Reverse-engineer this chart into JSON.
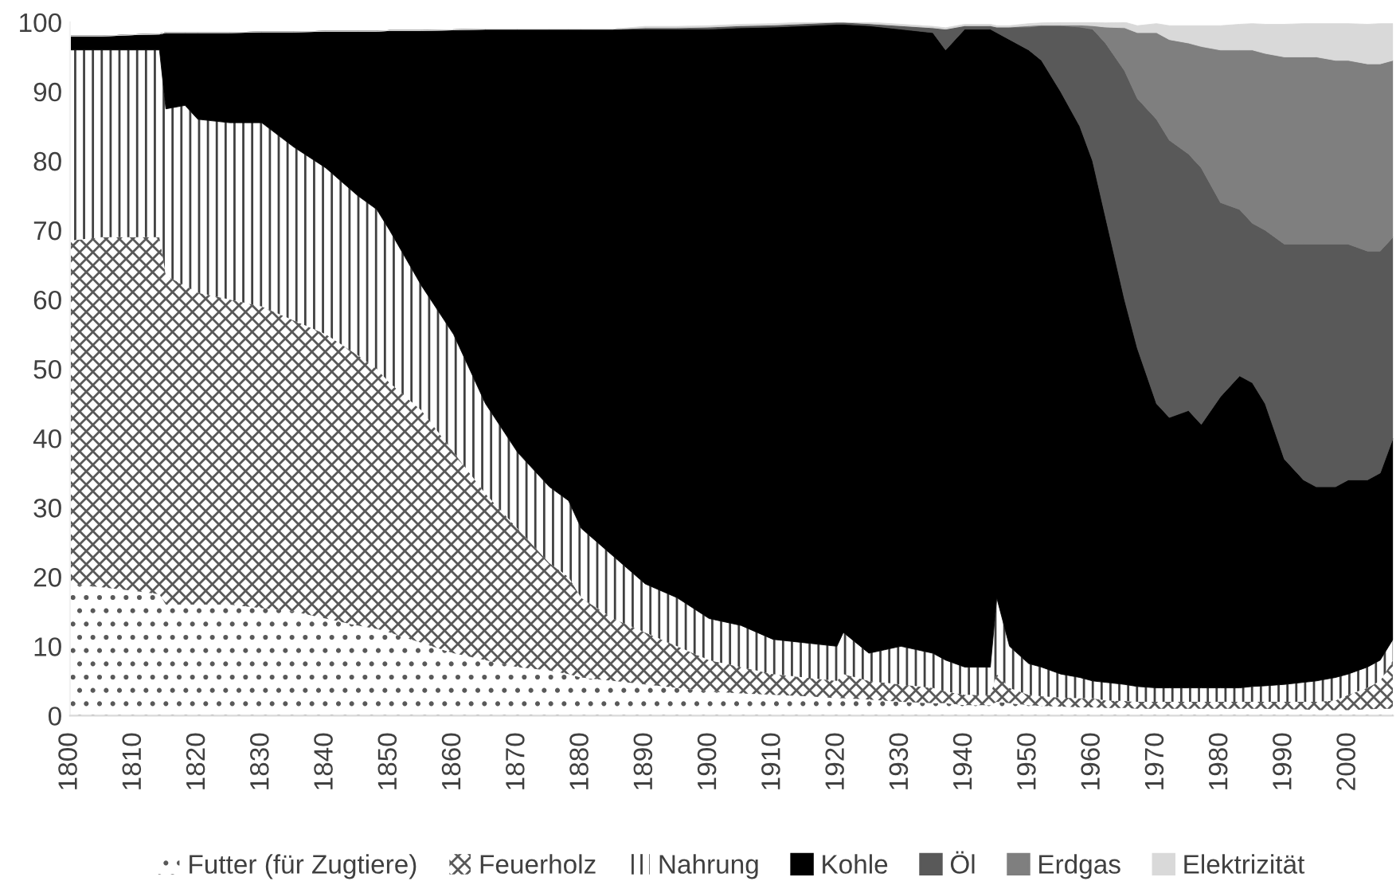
{
  "chart_data": {
    "type": "area",
    "stacked": true,
    "x": [
      1800,
      1805,
      1810,
      1814,
      1815,
      1818,
      1820,
      1825,
      1830,
      1835,
      1840,
      1845,
      1848,
      1850,
      1855,
      1860,
      1865,
      1870,
      1875,
      1878,
      1880,
      1885,
      1890,
      1895,
      1900,
      1905,
      1910,
      1915,
      1920,
      1921,
      1925,
      1930,
      1935,
      1937,
      1940,
      1944,
      1945,
      1947,
      1950,
      1952,
      1955,
      1958,
      1960,
      1962,
      1965,
      1967,
      1970,
      1972,
      1975,
      1977,
      1980,
      1983,
      1985,
      1987,
      1990,
      1993,
      1995,
      1998,
      2000,
      2003,
      2005,
      2007
    ],
    "series": [
      {
        "name": "Futter (für Zugtiere)",
        "color": "#595959",
        "values": [
          19,
          18.5,
          18,
          17.5,
          16,
          16,
          16,
          16,
          15.5,
          15,
          14,
          13,
          12.5,
          12,
          10.5,
          9,
          8,
          7,
          6.5,
          6,
          5.5,
          5,
          4.5,
          4,
          3.5,
          3.2,
          3,
          2.8,
          2.5,
          2.5,
          2.3,
          2,
          1.8,
          1.8,
          1.5,
          1.5,
          2,
          1.8,
          1.5,
          1.4,
          1.3,
          1.2,
          1.2,
          1.1,
          1.1,
          1,
          1,
          1,
          1,
          1,
          1,
          1,
          1,
          1,
          0.9,
          0.9,
          0.8,
          0.8,
          0.8,
          0.9,
          1,
          1
        ]
      },
      {
        "name": "Feuerholz",
        "color": "#595959",
        "values": [
          49.5,
          50.5,
          51,
          51.5,
          47.5,
          46,
          45,
          44,
          43.5,
          42,
          41,
          39,
          37.5,
          36,
          33.5,
          29,
          24,
          20,
          15.5,
          14,
          11.5,
          9,
          7.5,
          6,
          4.5,
          3.8,
          3,
          2.7,
          2.5,
          3.5,
          2.7,
          2.5,
          2.2,
          1.7,
          1.5,
          1.5,
          4,
          2.2,
          1.5,
          1.4,
          1.3,
          1.3,
          1.3,
          1.1,
          1,
          1,
          1,
          1,
          1,
          1,
          1,
          1,
          1,
          1,
          1.1,
          1.1,
          1.2,
          1.4,
          2.2,
          3.1,
          4,
          7
        ]
      },
      {
        "name": "Nahrung",
        "color": "#404040",
        "values": [
          27.5,
          27,
          27,
          27,
          24,
          26,
          25,
          25.5,
          26.5,
          25,
          24,
          23,
          23,
          22,
          18,
          17,
          13,
          11,
          11,
          11,
          10,
          9,
          7,
          7,
          6,
          6,
          5,
          5,
          5,
          6,
          4,
          5.5,
          5,
          4.5,
          4,
          4,
          11,
          6,
          4.5,
          4.2,
          3.4,
          3,
          2.5,
          2.6,
          2.4,
          2.2,
          2,
          2,
          2,
          2,
          2,
          2,
          2.2,
          2.3,
          2.5,
          2.8,
          3,
          3.3,
          3,
          3,
          3,
          3
        ]
      },
      {
        "name": "Kohle",
        "color": "#000000",
        "values": [
          2,
          2,
          2.2,
          2.3,
          11,
          10.5,
          12.5,
          13,
          13.1,
          16.6,
          19.7,
          23.7,
          25.7,
          28.8,
          36.8,
          43.9,
          54,
          61,
          66,
          68,
          72,
          76,
          80,
          82,
          85,
          86.2,
          88.3,
          89,
          89.7,
          87.7,
          90.5,
          89,
          89.5,
          88,
          92,
          92,
          81.5,
          87.5,
          88.5,
          87.5,
          84,
          79.5,
          75,
          67.2,
          55.5,
          48.8,
          41,
          39,
          40,
          38,
          42,
          45,
          43.8,
          40.7,
          32.5,
          29.2,
          28,
          27.5,
          28,
          27,
          27,
          29
        ]
      },
      {
        "name": "Öl",
        "color": "#595959",
        "values": [
          0,
          0,
          0,
          0,
          0,
          0,
          0,
          0,
          0,
          0,
          0,
          0,
          0,
          0,
          0,
          0,
          0,
          0,
          0,
          0,
          0,
          0,
          0.2,
          0.2,
          0.3,
          0.3,
          0.3,
          0.3,
          0.3,
          0.3,
          0.3,
          0.5,
          0.7,
          3,
          0.5,
          0.5,
          0.8,
          1.8,
          3.3,
          5,
          9.5,
          14.3,
          19,
          25,
          33,
          36,
          41,
          40,
          37,
          37,
          28,
          24,
          23,
          25,
          31,
          34,
          35,
          35,
          34,
          33,
          32,
          29
        ]
      },
      {
        "name": "Erdgas",
        "color": "#7f7f7f",
        "values": [
          0,
          0,
          0,
          0,
          0,
          0,
          0,
          0,
          0,
          0,
          0,
          0,
          0,
          0,
          0,
          0,
          0,
          0,
          0,
          0,
          0,
          0,
          0,
          0,
          0,
          0,
          0,
          0,
          0,
          0,
          0,
          0,
          0,
          0,
          0,
          0,
          0,
          0,
          0.2,
          0.1,
          0.1,
          0.3,
          0.5,
          2.3,
          6.2,
          9.5,
          12.5,
          14.5,
          16,
          17.5,
          22,
          23,
          25,
          25.5,
          27,
          27,
          27,
          26.5,
          26.5,
          27,
          27,
          25.5
        ]
      },
      {
        "name": "Elektrizität",
        "color": "#d9d9d9",
        "values": [
          0,
          0,
          0,
          0,
          0,
          0,
          0,
          0,
          0,
          0,
          0,
          0,
          0,
          0,
          0,
          0,
          0,
          0,
          0,
          0,
          0,
          0,
          0.2,
          0.2,
          0.2,
          0.2,
          0.2,
          0.2,
          0.2,
          0.2,
          0.2,
          0.2,
          0.2,
          0.2,
          0.2,
          0.2,
          0.2,
          0.2,
          0.3,
          0.3,
          0.4,
          0.4,
          0.5,
          0.6,
          0.8,
          1,
          1.3,
          2,
          2.5,
          3,
          3.5,
          3.7,
          3.8,
          4.2,
          4.7,
          4.8,
          4.8,
          5.3,
          5.3,
          5.7,
          5.8,
          5.3
        ]
      }
    ],
    "xlim": [
      1800,
      2007
    ],
    "xticks": [
      1800,
      1810,
      1820,
      1830,
      1840,
      1850,
      1860,
      1870,
      1880,
      1890,
      1900,
      1910,
      1920,
      1930,
      1940,
      1950,
      1960,
      1970,
      1980,
      1990,
      2000
    ],
    "ylim": [
      0,
      100
    ],
    "yticks": [
      0,
      10,
      20,
      30,
      40,
      50,
      60,
      70,
      80,
      90,
      100
    ],
    "grid": false,
    "legend": "bottom"
  }
}
